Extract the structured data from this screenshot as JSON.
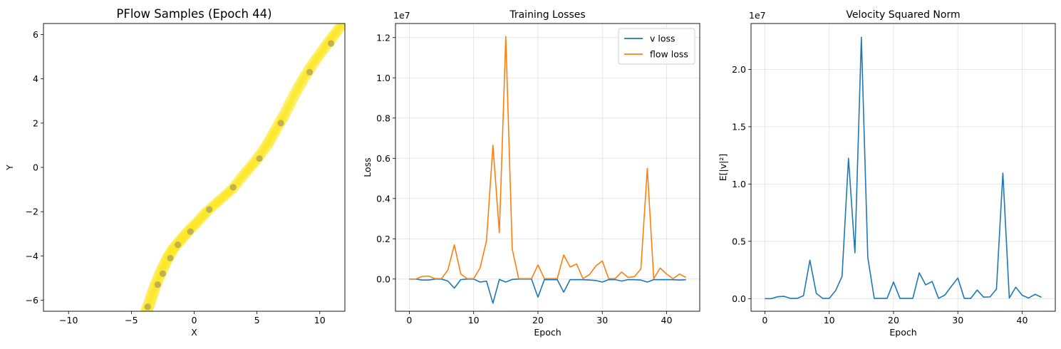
{
  "chart_data": [
    {
      "type": "scatter",
      "title": "PFlow Samples (Epoch 44)",
      "xlabel": "X",
      "ylabel": "Y",
      "xlim": [
        -12,
        12
      ],
      "ylim": [
        -6.5,
        6.5
      ],
      "xticks": [
        -10,
        -5,
        0,
        5,
        10
      ],
      "yticks": [
        -6,
        -4,
        -2,
        0,
        2,
        4,
        6
      ],
      "grid": false,
      "colors": {
        "light": "#fde725",
        "dark": "#b8a84e"
      },
      "curve": [
        [
          -4.0,
          -6.8
        ],
        [
          -3.6,
          -6.2
        ],
        [
          -3.2,
          -5.5
        ],
        [
          -2.7,
          -4.8
        ],
        [
          -2.2,
          -4.2
        ],
        [
          -1.7,
          -3.7
        ],
        [
          -1.1,
          -3.3
        ],
        [
          -0.5,
          -2.9
        ],
        [
          0.2,
          -2.5
        ],
        [
          1.0,
          -2.0
        ],
        [
          2.0,
          -1.5
        ],
        [
          3.0,
          -1.0
        ],
        [
          4.0,
          -0.3
        ],
        [
          4.9,
          0.3
        ],
        [
          5.8,
          1.0
        ],
        [
          6.5,
          1.7
        ],
        [
          7.2,
          2.4
        ],
        [
          8.0,
          3.3
        ],
        [
          8.8,
          4.1
        ],
        [
          9.6,
          4.8
        ],
        [
          10.5,
          5.5
        ],
        [
          11.3,
          6.1
        ],
        [
          12.2,
          6.8
        ]
      ],
      "dark_points": [
        [
          -3.7,
          -6.3
        ],
        [
          -2.9,
          -5.3
        ],
        [
          -2.5,
          -4.8
        ],
        [
          -1.9,
          -4.1
        ],
        [
          -1.3,
          -3.5
        ],
        [
          -0.3,
          -2.9
        ],
        [
          1.2,
          -1.9
        ],
        [
          3.1,
          -0.9
        ],
        [
          5.2,
          0.4
        ],
        [
          6.9,
          2.0
        ],
        [
          9.2,
          4.3
        ],
        [
          10.9,
          5.6
        ]
      ]
    },
    {
      "type": "line",
      "title": "Training Losses",
      "xlabel": "Epoch",
      "ylabel": "Loss",
      "scale_label": "1e7",
      "xlim": [
        -2.15,
        45.15
      ],
      "ylim": [
        -0.16,
        1.27
      ],
      "xticks": [
        0,
        10,
        20,
        30,
        40
      ],
      "yticks": [
        0.0,
        0.2,
        0.4,
        0.6,
        0.8,
        1.0,
        1.2
      ],
      "ytick_labels": [
        "0.0",
        "0.2",
        "0.4",
        "0.6",
        "0.8",
        "1.0",
        "1.2"
      ],
      "grid": true,
      "legend_position": "top-right",
      "x": [
        0,
        1,
        2,
        3,
        4,
        5,
        6,
        7,
        8,
        9,
        10,
        11,
        12,
        13,
        14,
        15,
        16,
        17,
        18,
        19,
        20,
        21,
        22,
        23,
        24,
        25,
        26,
        27,
        28,
        29,
        30,
        31,
        32,
        33,
        34,
        35,
        36,
        37,
        38,
        39,
        40,
        41,
        42,
        43
      ],
      "series": [
        {
          "name": "v loss",
          "color": "#1f77b4",
          "values": [
            0,
            0,
            -0.005,
            -0.005,
            0,
            0,
            -0.01,
            -0.045,
            -0.003,
            0,
            0,
            -0.015,
            -0.01,
            -0.12,
            -0.002,
            -0.015,
            -0.002,
            0,
            0,
            0,
            -0.09,
            -0.003,
            -0.003,
            -0.003,
            -0.065,
            -0.003,
            -0.003,
            -0.003,
            -0.005,
            -0.007,
            -0.015,
            -0.003,
            -0.003,
            -0.01,
            -0.003,
            -0.003,
            -0.005,
            -0.015,
            -0.003,
            -0.003,
            -0.003,
            -0.003,
            -0.005,
            -0.003
          ]
        },
        {
          "name": "flow loss",
          "color": "#ff7f0e",
          "values": [
            0,
            0,
            0.013,
            0.015,
            0.002,
            0.002,
            0.045,
            0.17,
            0.025,
            0.002,
            0.002,
            0.055,
            0.19,
            0.665,
            0.23,
            1.205,
            0.15,
            0.002,
            0.002,
            0.002,
            0.07,
            0.002,
            0.002,
            0.002,
            0.12,
            0.06,
            0.075,
            0.002,
            0.022,
            0.065,
            0.09,
            0.002,
            0.002,
            0.035,
            0.008,
            0.012,
            0.05,
            0.55,
            0.002,
            0.055,
            0.025,
            0.002,
            0.025,
            0.008
          ]
        }
      ]
    },
    {
      "type": "line",
      "title": "Velocity Squared Norm",
      "xlabel": "Epoch",
      "ylabel": "E[|v|²]",
      "scale_label": "1e7",
      "xlim": [
        -2.15,
        45.15
      ],
      "ylim": [
        -0.11,
        2.4
      ],
      "xticks": [
        0,
        10,
        20,
        30,
        40
      ],
      "yticks": [
        0.0,
        0.5,
        1.0,
        1.5,
        2.0
      ],
      "ytick_labels": [
        "0.0",
        "0.5",
        "1.0",
        "1.5",
        "2.0"
      ],
      "grid": true,
      "x": [
        0,
        1,
        2,
        3,
        4,
        5,
        6,
        7,
        8,
        9,
        10,
        11,
        12,
        13,
        14,
        15,
        16,
        17,
        18,
        19,
        20,
        21,
        22,
        23,
        24,
        25,
        26,
        27,
        28,
        29,
        30,
        31,
        32,
        33,
        34,
        35,
        36,
        37,
        38,
        39,
        40,
        41,
        42,
        43
      ],
      "series": [
        {
          "color": "#1f77b4",
          "values": [
            0,
            0,
            0.017,
            0.02,
            0.002,
            0.002,
            0.025,
            0.335,
            0.045,
            0.002,
            0.002,
            0.07,
            0.195,
            1.225,
            0.4,
            2.28,
            0.36,
            0.002,
            0.002,
            0.002,
            0.145,
            0.002,
            0.002,
            0.002,
            0.225,
            0.12,
            0.15,
            0.002,
            0.032,
            0.108,
            0.18,
            0.002,
            0.002,
            0.075,
            0.013,
            0.015,
            0.083,
            1.095,
            0.005,
            0.1,
            0.03,
            0.005,
            0.038,
            0.012
          ]
        }
      ]
    }
  ]
}
